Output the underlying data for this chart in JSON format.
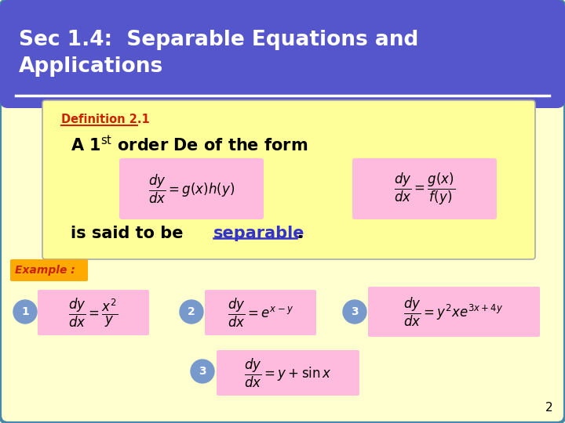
{
  "bg_color": "#ffffd0",
  "header_bg": "#5555cc",
  "header_text_line1": "Sec 1.4:  Separable Equations and",
  "header_text_line2": "Applications",
  "header_text_color": "#ffffff",
  "border_color": "#4488aa",
  "def_box_bg": "#ffff99",
  "def_label_color": "#cc2200",
  "def_label_text": "Definition 2.1",
  "formula_box_bg": "#ffbbdd",
  "example_box_bg": "#ffaa00",
  "example_text_color": "#cc2200",
  "circle_bg": "#7799cc",
  "separable_color": "#3333cc",
  "page_number": "2"
}
